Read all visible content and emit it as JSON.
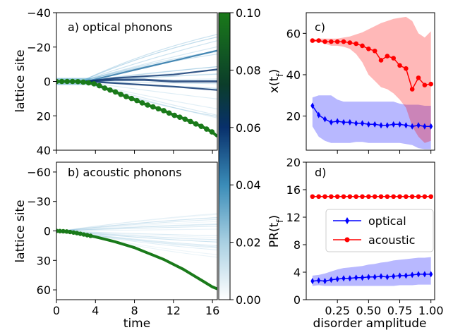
{
  "chart_data": [
    {
      "panel": "a",
      "type": "heatmap",
      "title": "a) optical phonons",
      "ylabel": "lattice site",
      "xlim": [
        0,
        16.5
      ],
      "ylim": [
        -40,
        40
      ],
      "y_inverted": true,
      "yticks": [
        -40,
        -20,
        0,
        20,
        40
      ],
      "xticks": [
        0,
        4,
        8,
        12,
        16
      ],
      "green_trajectory": {
        "t": [
          0,
          1,
          2,
          3,
          4,
          5,
          6,
          7,
          8,
          9,
          10,
          11,
          12,
          13,
          14,
          15,
          16,
          16.5
        ],
        "site": [
          0,
          0,
          0,
          0.5,
          1.5,
          4,
          6,
          8.5,
          10.5,
          13,
          15,
          17,
          19.5,
          21.5,
          24,
          26.5,
          29.5,
          32
        ]
      },
      "branches": [
        {
          "t": [
            3,
            6,
            9,
            12,
            16.5
          ],
          "site": [
            0,
            -4,
            -8,
            -12,
            -18
          ]
        },
        {
          "t": [
            3,
            6,
            9,
            12,
            16.5
          ],
          "site": [
            0,
            -2,
            -3,
            -4,
            -7
          ]
        },
        {
          "t": [
            3,
            6,
            9,
            12,
            16.5
          ],
          "site": [
            0,
            -1,
            -1,
            0,
            0
          ]
        },
        {
          "t": [
            3,
            6,
            9,
            12,
            16.5
          ],
          "site": [
            0,
            1,
            2,
            3,
            5
          ]
        }
      ]
    },
    {
      "panel": "b",
      "type": "heatmap",
      "title": "b) acoustic phonons",
      "xlabel": "time",
      "ylabel": "lattice site",
      "xlim": [
        0,
        16.5
      ],
      "ylim": [
        -70,
        70
      ],
      "y_inverted": true,
      "yticks": [
        -60,
        -30,
        0,
        30,
        60
      ],
      "xticks": [
        0,
        4,
        8,
        12,
        16
      ],
      "green_trajectory": {
        "t": [
          0,
          1,
          2,
          3,
          4,
          5,
          6,
          7,
          8,
          9,
          10,
          11,
          12,
          13,
          14,
          15,
          16,
          16.5
        ],
        "site": [
          0,
          0.5,
          2,
          4,
          6,
          8.5,
          11,
          14,
          17,
          21,
          25,
          29,
          34,
          39,
          45,
          51,
          57,
          59
        ]
      }
    },
    {
      "panel": "colorbar",
      "ticks": [
        "0.00",
        "0.02",
        "0.04",
        "0.06",
        "0.08",
        "0.10"
      ],
      "range": [
        0,
        0.1
      ],
      "colors": [
        "#ffffff",
        "#7fb8d2",
        "#2a7fae",
        "#08306b",
        "#0b3d2a",
        "#1a7a1a"
      ]
    },
    {
      "panel": "c",
      "type": "line",
      "title": "c)",
      "ylabel": "x(t_f)",
      "ylim": [
        3.5,
        70
      ],
      "yticks": [
        20,
        40,
        60
      ],
      "xlim": [
        0,
        1.03
      ],
      "x": [
        0.05,
        0.1,
        0.15,
        0.2,
        0.25,
        0.3,
        0.35,
        0.4,
        0.45,
        0.5,
        0.55,
        0.6,
        0.65,
        0.7,
        0.75,
        0.8,
        0.85,
        0.9,
        0.95,
        1.0
      ],
      "series": [
        {
          "name": "optical",
          "color": "#0000ff",
          "values": [
            25,
            20.5,
            18.5,
            17,
            17.5,
            17,
            17,
            16.5,
            16.5,
            16,
            16,
            15.5,
            15.5,
            16,
            16,
            15.5,
            15,
            15.5,
            15,
            15
          ],
          "band_low": [
            15,
            10,
            8,
            7,
            7,
            7,
            7,
            7.5,
            7.5,
            7,
            7,
            7,
            7,
            7,
            7,
            6.5,
            6,
            4.5,
            4,
            4
          ],
          "band_high": [
            29,
            30,
            30,
            30,
            28,
            27,
            27,
            27,
            27,
            27,
            27,
            27,
            27,
            27,
            26,
            25.5,
            25.5,
            25.5,
            25,
            25
          ]
        },
        {
          "name": "acoustic",
          "color": "#ff0000",
          "values": [
            56.5,
            56.5,
            56,
            56,
            56,
            56,
            55.5,
            55,
            54,
            52.5,
            51.5,
            47,
            49,
            48,
            44.5,
            43,
            33,
            38.5,
            35,
            35.5
          ],
          "band_low": [
            56,
            56,
            55,
            54,
            54,
            53.5,
            52.5,
            50,
            46,
            40,
            37,
            34,
            33,
            31,
            28,
            24,
            15,
            10,
            7,
            8
          ],
          "band_high": [
            57,
            57.5,
            57.5,
            57.5,
            57.5,
            58,
            58.5,
            59.5,
            60.5,
            62,
            63.5,
            65,
            66,
            67,
            67.5,
            68,
            66,
            60,
            58,
            61
          ]
        }
      ]
    },
    {
      "panel": "d",
      "type": "line",
      "title": "d)",
      "xlabel": "disorder amplitude",
      "ylabel": "PR(t_f)",
      "ylim": [
        0,
        20
      ],
      "yticks": [
        0,
        4,
        8,
        12,
        16,
        20
      ],
      "xlim": [
        0,
        1.03
      ],
      "xticks": [
        "0.25",
        "0.50",
        "0.75",
        "1.00"
      ],
      "legend": {
        "position": "center-right",
        "entries": [
          "optical",
          "acoustic"
        ]
      },
      "x": [
        0.05,
        0.1,
        0.15,
        0.2,
        0.25,
        0.3,
        0.35,
        0.4,
        0.45,
        0.5,
        0.55,
        0.6,
        0.65,
        0.7,
        0.75,
        0.8,
        0.85,
        0.9,
        0.95,
        1.0
      ],
      "series": [
        {
          "name": "optical",
          "color": "#0000ff",
          "values": [
            2.7,
            2.8,
            2.7,
            2.9,
            3.0,
            3.1,
            3.1,
            3.2,
            3.2,
            3.3,
            3.3,
            3.4,
            3.3,
            3.4,
            3.5,
            3.5,
            3.6,
            3.7,
            3.7,
            3.7
          ],
          "band_low": [
            2.0,
            2.1,
            2.0,
            2.0,
            2.0,
            2.0,
            2.0,
            2.0,
            2.0,
            2.0,
            2.0,
            2.0,
            2.0,
            2.0,
            2.1,
            2.1,
            2.1,
            2.2,
            2.2,
            2.2
          ],
          "band_high": [
            3.5,
            3.6,
            3.8,
            4.1,
            4.4,
            4.6,
            4.7,
            4.8,
            4.9,
            5.1,
            5.2,
            5.4,
            5.5,
            5.7,
            5.8,
            5.9,
            6.0,
            6.1,
            6.1,
            6.2
          ]
        },
        {
          "name": "acoustic",
          "color": "#ff0000",
          "values": [
            15,
            15,
            15,
            15,
            15,
            15,
            15,
            15,
            15,
            15,
            15,
            15,
            15,
            15,
            15,
            15,
            15,
            15,
            15,
            15
          ]
        }
      ]
    }
  ],
  "labels": {
    "a_title": "a) optical phonons",
    "b_title": "b) acoustic phonons",
    "c_title": "c)",
    "d_title": "d)",
    "lattice_site": "lattice site",
    "time": "time",
    "disorder_amplitude": "disorder amplitude",
    "legend_optical": "optical",
    "legend_acoustic": "acoustic"
  }
}
